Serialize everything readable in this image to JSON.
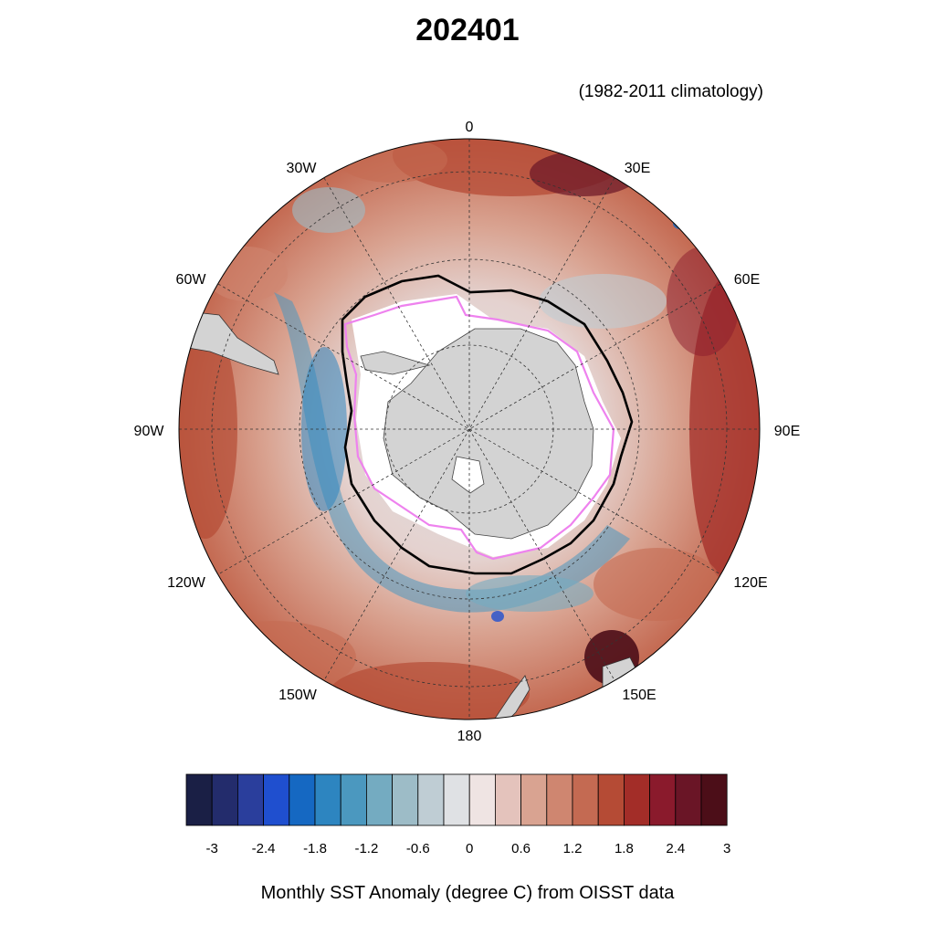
{
  "title": "202401",
  "subtitle": "(1982-2011 climatology)",
  "footer": "Monthly SST Anomaly (degree C) from OISST data",
  "map": {
    "projection": "south polar stereographic",
    "longitude_labels": [
      "0",
      "30E",
      "60E",
      "90E",
      "120E",
      "150E",
      "180",
      "150W",
      "120W",
      "90W",
      "60W",
      "30W"
    ],
    "legend_lines": [
      {
        "color": "#000000",
        "meaning": "climatological sea-ice edge"
      },
      {
        "color": "#ee82ee",
        "meaning": "current sea-ice edge"
      }
    ],
    "land_color": "#d3d3d3",
    "sea_ice_color": "#ffffff"
  },
  "colorbar": {
    "colors": [
      "#1a1f45",
      "#232c6c",
      "#2a3e9c",
      "#1f4fcf",
      "#1568c2",
      "#2d85c0",
      "#4b98bf",
      "#74abc1",
      "#9dbcc7",
      "#bfcdd4",
      "#dfe1e4",
      "#efe4e3",
      "#e4c3bc",
      "#d9a391",
      "#cf8670",
      "#c46a52",
      "#b54b35",
      "#a32d28",
      "#8a1a2c",
      "#6a1526",
      "#4c0e18"
    ],
    "tick_labels": [
      "-3",
      "-2.4",
      "-1.8",
      "-1.2",
      "-0.6",
      "0",
      "0.6",
      "1.2",
      "1.8",
      "2.4",
      "3"
    ]
  }
}
